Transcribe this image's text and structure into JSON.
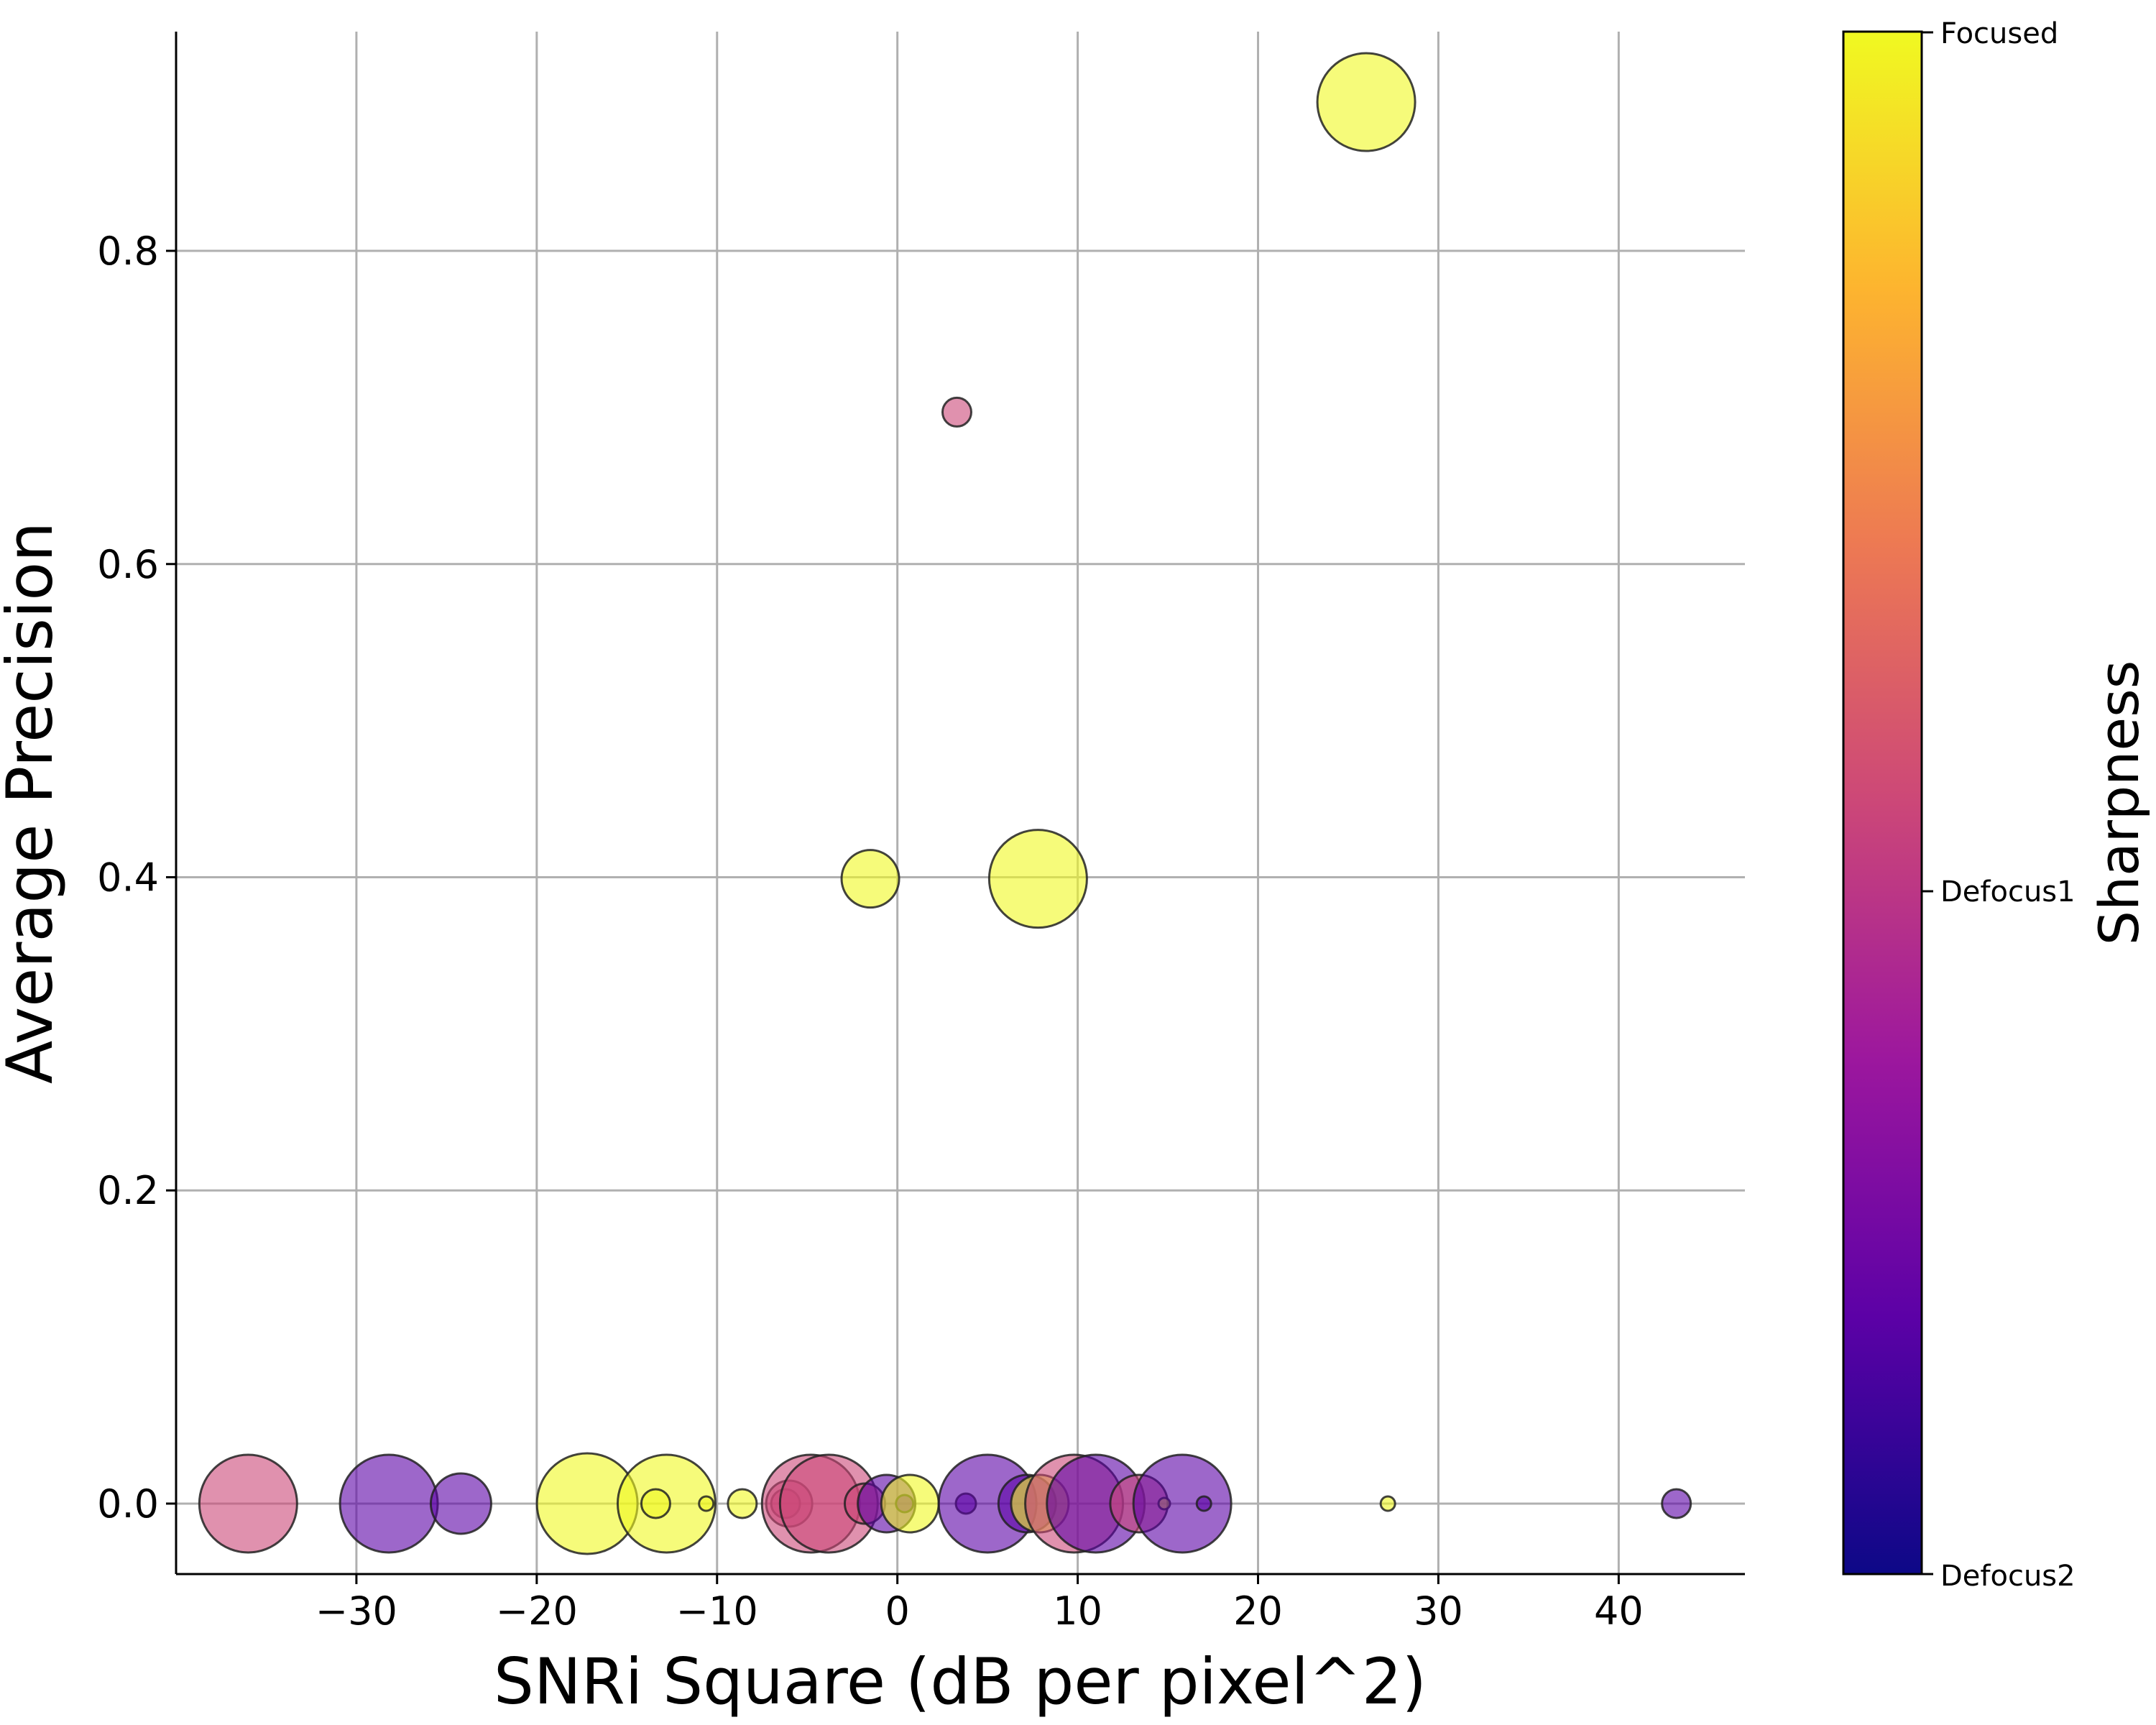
{
  "chart_data": {
    "type": "scatter",
    "title": "",
    "xlabel": "SNRi Square (dB per pixel^2)",
    "ylabel": "Average Precision",
    "xlim": [
      -40,
      47
    ],
    "ylim": [
      -0.045,
      0.94
    ],
    "xticks": [
      -30,
      -20,
      -10,
      0,
      10,
      20,
      30,
      40
    ],
    "xtick_labels": [
      "−30",
      "−20",
      "−10",
      "0",
      "10",
      "20",
      "30",
      "40"
    ],
    "yticks": [
      0.0,
      0.2,
      0.4,
      0.6,
      0.8
    ],
    "ytick_labels": [
      "0.0",
      "0.2",
      "0.4",
      "0.6",
      "0.8"
    ],
    "grid": true,
    "size_encoding": "marker area (unlabeled)",
    "colorbar": {
      "title": "Sharpness",
      "colormap": "plasma",
      "ticks": [
        "Focused",
        "Defocus1",
        "Defocus2"
      ],
      "colors": [
        "#0d0887",
        "#5c01a6",
        "#9c179e",
        "#cc4778",
        "#ed7953",
        "#fdb42f",
        "#f0f921"
      ]
    },
    "points": [
      {
        "x": -36.0,
        "y": 0.0,
        "sharpness": "Defocus1",
        "size": 3.4
      },
      {
        "x": -28.2,
        "y": 0.0,
        "sharpness": "Defocus2",
        "size": 3.4
      },
      {
        "x": -24.2,
        "y": 0.0,
        "sharpness": "Defocus2",
        "size": 2.1
      },
      {
        "x": -17.2,
        "y": 0.0,
        "sharpness": "Focused",
        "size": 3.5
      },
      {
        "x": -12.8,
        "y": 0.0,
        "sharpness": "Focused",
        "size": 3.4
      },
      {
        "x": -13.4,
        "y": 0.0,
        "sharpness": "Focused",
        "size": 1.0
      },
      {
        "x": -10.6,
        "y": 0.0,
        "sharpness": "Focused",
        "size": 0.5
      },
      {
        "x": -8.6,
        "y": 0.0,
        "sharpness": "Focused",
        "size": 1.0
      },
      {
        "x": -6.2,
        "y": 0.0,
        "sharpness": "Defocus1",
        "size": 1.0
      },
      {
        "x": -6.0,
        "y": 0.0,
        "sharpness": "Defocus1",
        "size": 1.6
      },
      {
        "x": -4.8,
        "y": 0.0,
        "sharpness": "Defocus1",
        "size": 3.4
      },
      {
        "x": -3.8,
        "y": 0.0,
        "sharpness": "Defocus1",
        "size": 3.4
      },
      {
        "x": -1.8,
        "y": 0.0,
        "sharpness": "Defocus1",
        "size": 1.4
      },
      {
        "x": -0.6,
        "y": 0.0,
        "sharpness": "Defocus2",
        "size": 2.0
      },
      {
        "x": 0.4,
        "y": 0.0,
        "sharpness": "Defocus2",
        "size": 0.6
      },
      {
        "x": 0.7,
        "y": 0.0,
        "sharpness": "Focused",
        "size": 2.0
      },
      {
        "x": 3.8,
        "y": 0.0,
        "sharpness": "Defocus2",
        "size": 0.7
      },
      {
        "x": 5.0,
        "y": 0.0,
        "sharpness": "Defocus2",
        "size": 3.4
      },
      {
        "x": 7.2,
        "y": 0.0,
        "sharpness": "Defocus2",
        "size": 2.0
      },
      {
        "x": 7.9,
        "y": 0.0,
        "sharpness": "Focused",
        "size": 2.0
      },
      {
        "x": 9.8,
        "y": 0.0,
        "sharpness": "Defocus1",
        "size": 3.4
      },
      {
        "x": 11.0,
        "y": 0.0,
        "sharpness": "Defocus2",
        "size": 3.4
      },
      {
        "x": 13.4,
        "y": 0.0,
        "sharpness": "Defocus1",
        "size": 2.0
      },
      {
        "x": 14.8,
        "y": 0.0,
        "sharpness": "Focused",
        "size": 0.4
      },
      {
        "x": 15.8,
        "y": 0.0,
        "sharpness": "Defocus2",
        "size": 3.4
      },
      {
        "x": 17.0,
        "y": 0.0,
        "sharpness": "Defocus2",
        "size": 0.5
      },
      {
        "x": 27.2,
        "y": 0.0,
        "sharpness": "Focused",
        "size": 0.5
      },
      {
        "x": 43.2,
        "y": 0.0,
        "sharpness": "Defocus2",
        "size": 1.0
      },
      {
        "x": -1.5,
        "y": 0.399,
        "sharpness": "Focused",
        "size": 2.0
      },
      {
        "x": 7.8,
        "y": 0.399,
        "sharpness": "Focused",
        "size": 3.4
      },
      {
        "x": 3.3,
        "y": 0.697,
        "sharpness": "Defocus1",
        "size": 1.0
      },
      {
        "x": 26.0,
        "y": 0.895,
        "sharpness": "Focused",
        "size": 3.4
      }
    ]
  }
}
